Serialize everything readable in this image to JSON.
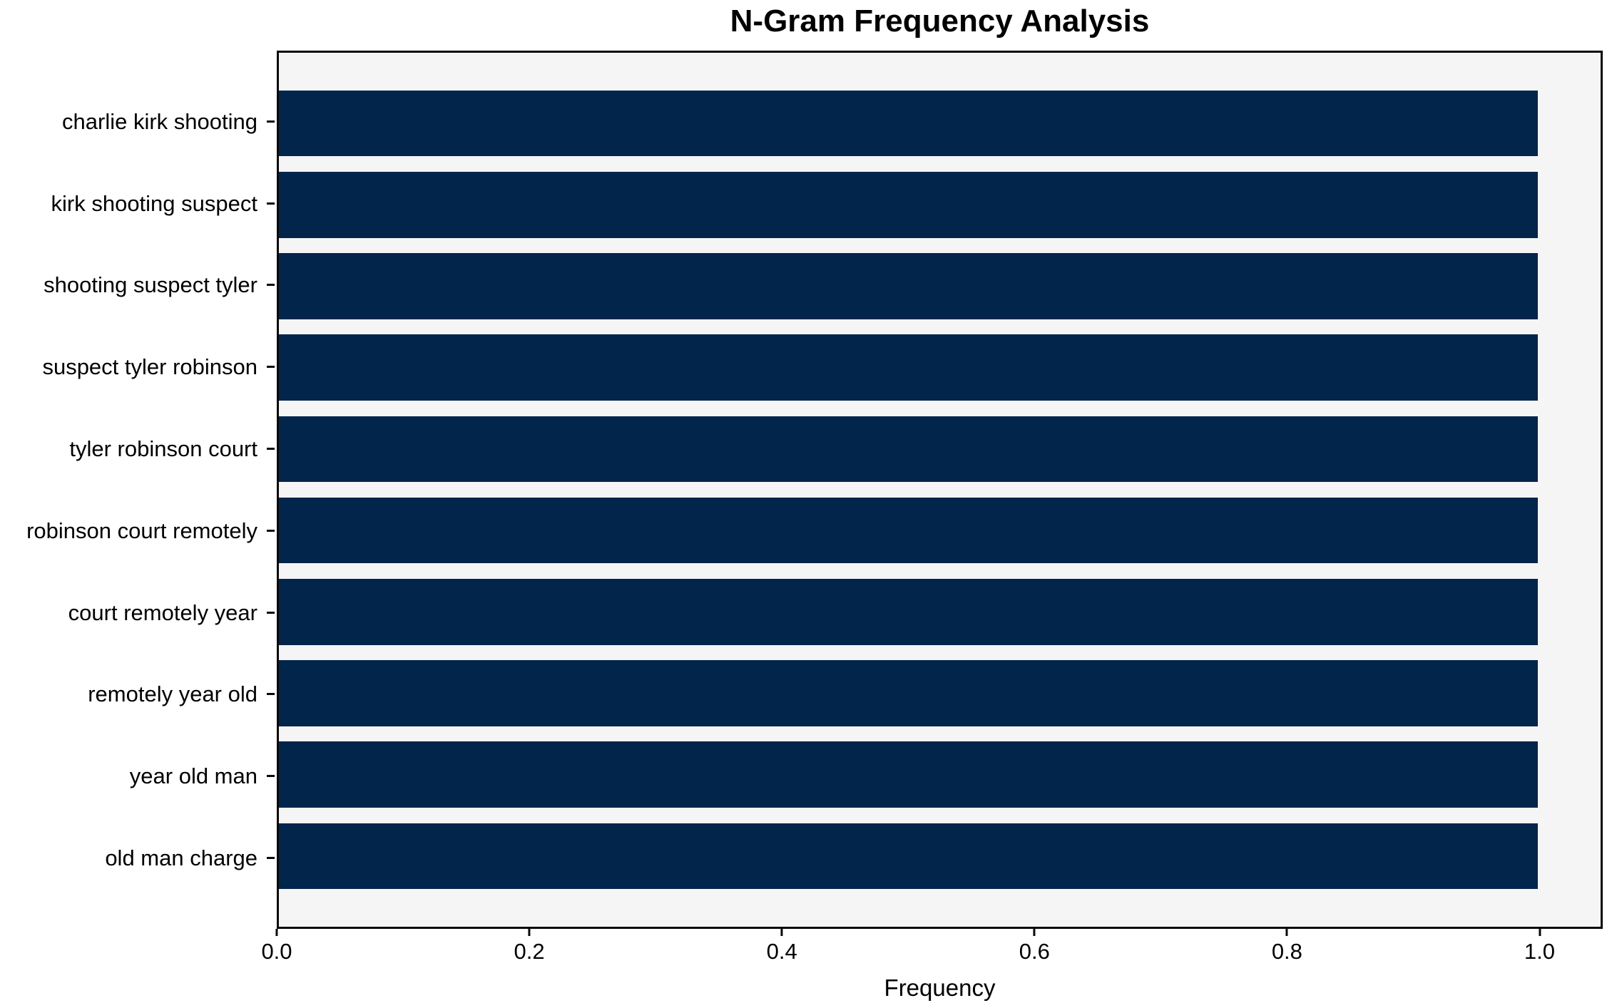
{
  "title": "N-Gram Frequency Analysis",
  "chart_data": {
    "type": "bar",
    "orientation": "horizontal",
    "title": "N-Gram Frequency Analysis",
    "xlabel": "Frequency",
    "ylabel": "",
    "categories": [
      "charlie kirk shooting",
      "kirk shooting suspect",
      "shooting suspect tyler",
      "suspect tyler robinson",
      "tyler robinson court",
      "robinson court remotely",
      "court remotely year",
      "remotely year old",
      "year old man",
      "old man charge"
    ],
    "values": [
      1.0,
      1.0,
      1.0,
      1.0,
      1.0,
      1.0,
      1.0,
      1.0,
      1.0,
      1.0
    ],
    "xlim": [
      0.0,
      1.05
    ],
    "xticks": [
      0.0,
      0.2,
      0.4,
      0.6,
      0.8,
      1.0
    ],
    "xtick_labels": [
      "0.0",
      "0.2",
      "0.4",
      "0.6",
      "0.8",
      "1.0"
    ],
    "grid": false,
    "legend": false,
    "colors": {
      "bar": "#02254c",
      "plot_background": "#f5f5f6",
      "figure_background": "#ffffff",
      "spine": "#0a0a0a",
      "text": "#000000"
    }
  }
}
